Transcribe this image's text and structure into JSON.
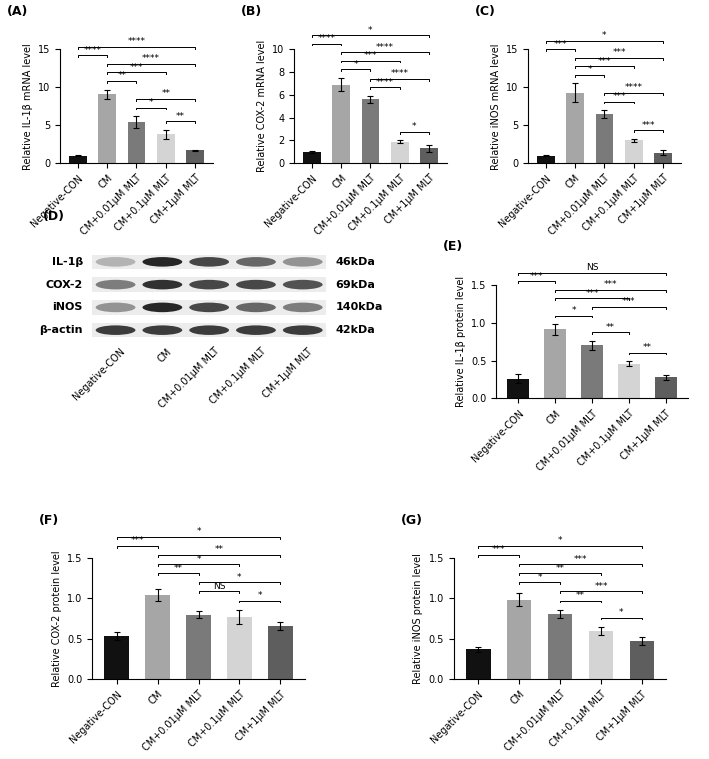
{
  "chart_data": [
    {
      "type": "bar",
      "panel": "(A)",
      "y_label": "Relative IL-1β mRNA level",
      "categories": [
        "Negative-CON",
        "CM",
        "CM+0.01μM MLT",
        "CM+0.1μM MLT",
        "CM+1μM MLT"
      ],
      "values": [
        1.0,
        9.1,
        5.4,
        3.8,
        1.7
      ],
      "errors": [
        0.1,
        0.6,
        0.8,
        0.6,
        0.1
      ],
      "colors": [
        "#111111",
        "#a6a6a6",
        "#7a7a7a",
        "#d4d4d4",
        "#5e5e5e"
      ],
      "ylim": [
        0,
        15
      ],
      "yticks": [
        0,
        5,
        10,
        15
      ],
      "comparisons": [
        {
          "between": [
            "CM+0.1μM MLT",
            "CM+1μM MLT"
          ],
          "label": "**"
        },
        {
          "between": [
            "CM+0.01μM MLT",
            "CM+0.1μM MLT"
          ],
          "label": "*"
        },
        {
          "between": [
            "CM+0.01μM MLT",
            "CM+1μM MLT"
          ],
          "label": "**"
        },
        {
          "between": [
            "CM",
            "CM+0.01μM MLT"
          ],
          "label": "**"
        },
        {
          "between": [
            "CM",
            "CM+0.1μM MLT"
          ],
          "label": "***"
        },
        {
          "between": [
            "CM",
            "CM+1μM MLT"
          ],
          "label": "****"
        },
        {
          "between": [
            "Negative-CON",
            "CM"
          ],
          "label": "****"
        },
        {
          "between": [
            "Negative-CON",
            "CM+1μM MLT"
          ],
          "label": "****"
        }
      ]
    },
    {
      "type": "bar",
      "panel": "(B)",
      "y_label": "Relative COX-2 mRNA level",
      "categories": [
        "Negative-CON",
        "CM",
        "CM+0.01μM MLT",
        "CM+0.1μM MLT",
        "CM+1μM MLT"
      ],
      "values": [
        1.0,
        6.9,
        5.6,
        1.9,
        1.3
      ],
      "errors": [
        0.1,
        0.6,
        0.3,
        0.1,
        0.3
      ],
      "colors": [
        "#111111",
        "#a6a6a6",
        "#7a7a7a",
        "#d4d4d4",
        "#5e5e5e"
      ],
      "ylim": [
        0,
        10
      ],
      "yticks": [
        0,
        2,
        4,
        6,
        8,
        10
      ],
      "comparisons": [
        {
          "between": [
            "CM+0.1μM MLT",
            "CM+1μM MLT"
          ],
          "label": "*"
        },
        {
          "between": [
            "CM+0.01μM MLT",
            "CM+0.1μM MLT"
          ],
          "label": "****"
        },
        {
          "between": [
            "CM+0.01μM MLT",
            "CM+1μM MLT"
          ],
          "label": "****"
        },
        {
          "between": [
            "CM",
            "CM+0.01μM MLT"
          ],
          "label": "*"
        },
        {
          "between": [
            "CM",
            "CM+0.1μM MLT"
          ],
          "label": "***"
        },
        {
          "between": [
            "CM",
            "CM+1μM MLT"
          ],
          "label": "****"
        },
        {
          "between": [
            "Negative-CON",
            "CM"
          ],
          "label": "****"
        },
        {
          "between": [
            "Negative-CON",
            "CM+1μM MLT"
          ],
          "label": "*"
        }
      ]
    },
    {
      "type": "bar",
      "panel": "(C)",
      "y_label": "Relative iNOS mRNA level",
      "categories": [
        "Negative-CON",
        "CM",
        "CM+0.01μM MLT",
        "CM+0.1μM MLT",
        "CM+1μM MLT"
      ],
      "values": [
        1.0,
        9.3,
        6.5,
        3.0,
        1.4
      ],
      "errors": [
        0.1,
        1.2,
        0.5,
        0.2,
        0.3
      ],
      "colors": [
        "#111111",
        "#a6a6a6",
        "#7a7a7a",
        "#d4d4d4",
        "#5e5e5e"
      ],
      "ylim": [
        0,
        15
      ],
      "yticks": [
        0,
        5,
        10,
        15
      ],
      "comparisons": [
        {
          "between": [
            "CM+0.1μM MLT",
            "CM+1μM MLT"
          ],
          "label": "***"
        },
        {
          "between": [
            "CM+0.01μM MLT",
            "CM+0.1μM MLT"
          ],
          "label": "***"
        },
        {
          "between": [
            "CM+0.01μM MLT",
            "CM+1μM MLT"
          ],
          "label": "****"
        },
        {
          "between": [
            "CM",
            "CM+0.01μM MLT"
          ],
          "label": "*"
        },
        {
          "between": [
            "CM",
            "CM+0.1μM MLT"
          ],
          "label": "***"
        },
        {
          "between": [
            "CM",
            "CM+1μM MLT"
          ],
          "label": "***"
        },
        {
          "between": [
            "Negative-CON",
            "CM"
          ],
          "label": "***"
        },
        {
          "between": [
            "Negative-CON",
            "CM+1μM MLT"
          ],
          "label": "*"
        }
      ]
    },
    {
      "type": "blot",
      "panel": "(D)",
      "lanes": [
        "Negative-CON",
        "CM",
        "CM+0.01μM MLT",
        "CM+0.1μM MLT",
        "CM+1μM MLT"
      ],
      "bands": [
        {
          "name": "IL-1β",
          "size": "46kDa",
          "intensity": [
            0.35,
            1.0,
            0.85,
            0.7,
            0.5
          ]
        },
        {
          "name": "COX-2",
          "size": "69kDa",
          "intensity": [
            0.6,
            0.95,
            0.85,
            0.85,
            0.8
          ]
        },
        {
          "name": "iNOS",
          "size": "140kDa",
          "intensity": [
            0.5,
            1.0,
            0.85,
            0.7,
            0.6
          ]
        },
        {
          "name": "β-actin",
          "size": "42kDa",
          "intensity": [
            0.9,
            0.9,
            0.9,
            0.9,
            0.9
          ]
        }
      ]
    },
    {
      "type": "bar",
      "panel": "(E)",
      "y_label": "Relative IL-1β protein level",
      "categories": [
        "Negative-CON",
        "CM",
        "CM+0.01μM MLT",
        "CM+0.1μM MLT",
        "CM+1μM MLT"
      ],
      "values": [
        0.26,
        0.91,
        0.7,
        0.46,
        0.28
      ],
      "errors": [
        0.06,
        0.07,
        0.06,
        0.03,
        0.03
      ],
      "colors": [
        "#111111",
        "#a6a6a6",
        "#7a7a7a",
        "#d4d4d4",
        "#5e5e5e"
      ],
      "ylim": [
        0.0,
        1.5
      ],
      "yticks": [
        0.0,
        0.5,
        1.0,
        1.5
      ],
      "comparisons": [
        {
          "between": [
            "CM+0.1μM MLT",
            "CM+1μM MLT"
          ],
          "label": "**"
        },
        {
          "between": [
            "CM+0.01μM MLT",
            "CM+0.1μM MLT"
          ],
          "label": "**"
        },
        {
          "between": [
            "CM",
            "CM+0.01μM MLT"
          ],
          "label": "*"
        },
        {
          "between": [
            "CM+0.01μM MLT",
            "CM+1μM MLT"
          ],
          "label": "***"
        },
        {
          "between": [
            "CM",
            "CM+0.1μM MLT"
          ],
          "label": "***"
        },
        {
          "between": [
            "CM",
            "CM+1μM MLT"
          ],
          "label": "***"
        },
        {
          "between": [
            "Negative-CON",
            "CM"
          ],
          "label": "***"
        },
        {
          "between": [
            "Negative-CON",
            "CM+1μM MLT"
          ],
          "label": "NS"
        }
      ]
    },
    {
      "type": "bar",
      "panel": "(F)",
      "y_label": "Relative COX-2 protein level",
      "categories": [
        "Negative-CON",
        "CM",
        "CM+0.01μM MLT",
        "CM+0.1μM MLT",
        "CM+1μM MLT"
      ],
      "values": [
        0.53,
        1.04,
        0.8,
        0.77,
        0.66
      ],
      "errors": [
        0.05,
        0.07,
        0.04,
        0.09,
        0.05
      ],
      "colors": [
        "#111111",
        "#a6a6a6",
        "#7a7a7a",
        "#d4d4d4",
        "#5e5e5e"
      ],
      "ylim": [
        0.0,
        1.5
      ],
      "yticks": [
        0.0,
        0.5,
        1.0,
        1.5
      ],
      "comparisons": [
        {
          "between": [
            "CM+0.1μM MLT",
            "CM+1μM MLT"
          ],
          "label": "*"
        },
        {
          "between": [
            "CM+0.01μM MLT",
            "CM+0.1μM MLT"
          ],
          "label": "NS"
        },
        {
          "between": [
            "CM+0.01μM MLT",
            "CM+1μM MLT"
          ],
          "label": "*"
        },
        {
          "between": [
            "CM",
            "CM+0.01μM MLT"
          ],
          "label": "**"
        },
        {
          "between": [
            "CM",
            "CM+0.1μM MLT"
          ],
          "label": "*"
        },
        {
          "between": [
            "CM",
            "CM+1μM MLT"
          ],
          "label": "**"
        },
        {
          "between": [
            "Negative-CON",
            "CM"
          ],
          "label": "***"
        },
        {
          "between": [
            "Negative-CON",
            "CM+1μM MLT"
          ],
          "label": "*"
        }
      ]
    },
    {
      "type": "bar",
      "panel": "(G)",
      "y_label": "Relative iNOS protein level",
      "categories": [
        "Negative-CON",
        "CM",
        "CM+0.01μM MLT",
        "CM+0.1μM MLT",
        "CM+1μM MLT"
      ],
      "values": [
        0.37,
        0.98,
        0.81,
        0.6,
        0.47
      ],
      "errors": [
        0.03,
        0.08,
        0.05,
        0.05,
        0.05
      ],
      "colors": [
        "#111111",
        "#a6a6a6",
        "#7a7a7a",
        "#d4d4d4",
        "#5e5e5e"
      ],
      "ylim": [
        0.0,
        1.5
      ],
      "yticks": [
        0.0,
        0.5,
        1.0,
        1.5
      ],
      "comparisons": [
        {
          "between": [
            "CM+0.1μM MLT",
            "CM+1μM MLT"
          ],
          "label": "*"
        },
        {
          "between": [
            "CM+0.01μM MLT",
            "CM+0.1μM MLT"
          ],
          "label": "**"
        },
        {
          "between": [
            "CM+0.01μM MLT",
            "CM+1μM MLT"
          ],
          "label": "***"
        },
        {
          "between": [
            "CM",
            "CM+0.01μM MLT"
          ],
          "label": "*"
        },
        {
          "between": [
            "CM",
            "CM+0.1μM MLT"
          ],
          "label": "**"
        },
        {
          "between": [
            "CM",
            "CM+1μM MLT"
          ],
          "label": "***"
        },
        {
          "between": [
            "Negative-CON",
            "CM"
          ],
          "label": "***"
        },
        {
          "between": [
            "Negative-CON",
            "CM+1μM MLT"
          ],
          "label": "*"
        }
      ]
    }
  ]
}
